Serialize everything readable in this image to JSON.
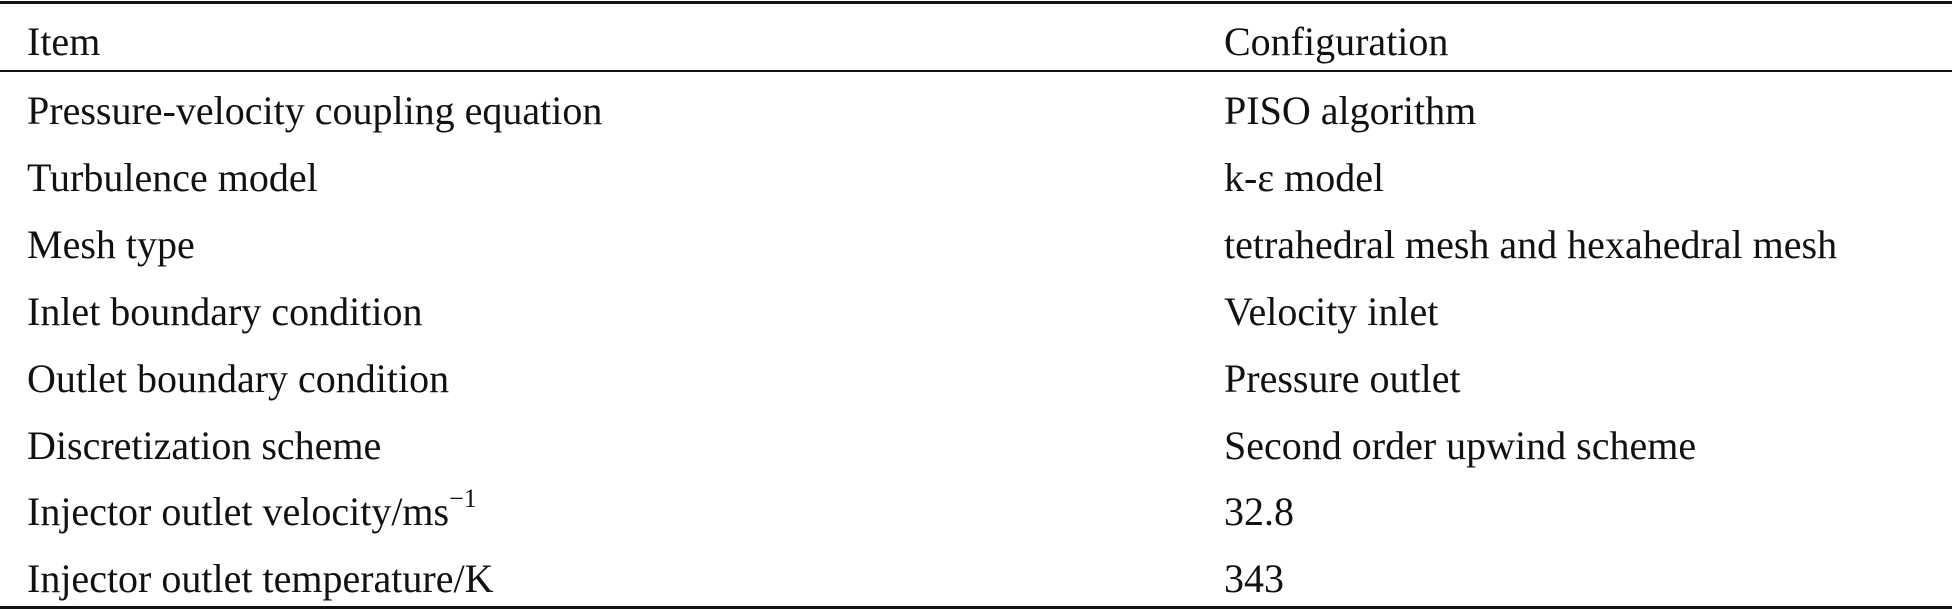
{
  "table": {
    "header": [
      "Item",
      "Configuration"
    ],
    "rows": [
      [
        "Pressure-velocity coupling equation",
        "PISO algorithm"
      ],
      [
        "Turbulence model",
        "k-ε model"
      ],
      [
        "Mesh type",
        "tetrahedral mesh and hexahedral mesh"
      ],
      [
        "Inlet boundary condition",
        "Velocity inlet"
      ],
      [
        "Outlet boundary condition",
        "Pressure outlet"
      ],
      [
        "Discretization scheme",
        "Second order upwind scheme"
      ],
      [
        {
          "text": "Injector outlet velocity/ms",
          "sup": "−1"
        },
        "32.8"
      ],
      [
        "Injector outlet temperature/K",
        "343"
      ]
    ]
  }
}
